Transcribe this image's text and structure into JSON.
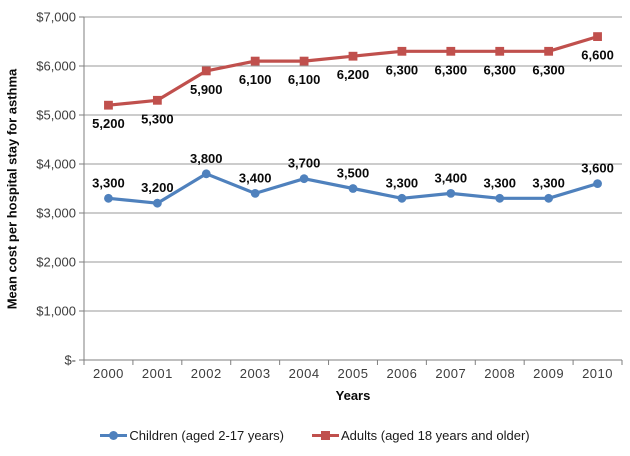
{
  "chart_data": {
    "type": "line",
    "x_categories": [
      "2000",
      "2001",
      "2002",
      "2003",
      "2004",
      "2005",
      "2006",
      "2007",
      "2008",
      "2009",
      "2010"
    ],
    "xlabel": "Years",
    "ylabel": "Mean cost per hospital stay for asthma",
    "ylim": [
      0,
      7000
    ],
    "y_tick_step": 1000,
    "y_tick_labels": [
      "$-",
      "$1,000",
      "$2,000",
      "$3,000",
      "$4,000",
      "$5,000",
      "$6,000",
      "$7,000"
    ],
    "grid": true,
    "legend_position": "bottom",
    "series": [
      {
        "name": "Children (aged 2-17 years)",
        "color": "#4F81BD",
        "marker": "circle",
        "data_label_position": "above",
        "values": [
          3300,
          3200,
          3800,
          3400,
          3700,
          3500,
          3300,
          3400,
          3300,
          3300,
          3600
        ],
        "data_labels": [
          "3,300",
          "3,200",
          "3,800",
          "3,400",
          "3,700",
          "3,500",
          "3,300",
          "3,400",
          "3,300",
          "3,300",
          "3,600"
        ]
      },
      {
        "name": "Adults (aged 18 years and older)",
        "color": "#C0504D",
        "marker": "square",
        "data_label_position": "below",
        "values": [
          5200,
          5300,
          5900,
          6100,
          6100,
          6200,
          6300,
          6300,
          6300,
          6300,
          6600
        ],
        "data_labels": [
          "5,200",
          "5,300",
          "5,900",
          "6,100",
          "6,100",
          "6,200",
          "6,300",
          "6,300",
          "6,300",
          "6,300",
          "6,600"
        ]
      }
    ],
    "style": {
      "gridline_color": "#9a9a9a",
      "axis_color": "#7f7f7f"
    }
  }
}
